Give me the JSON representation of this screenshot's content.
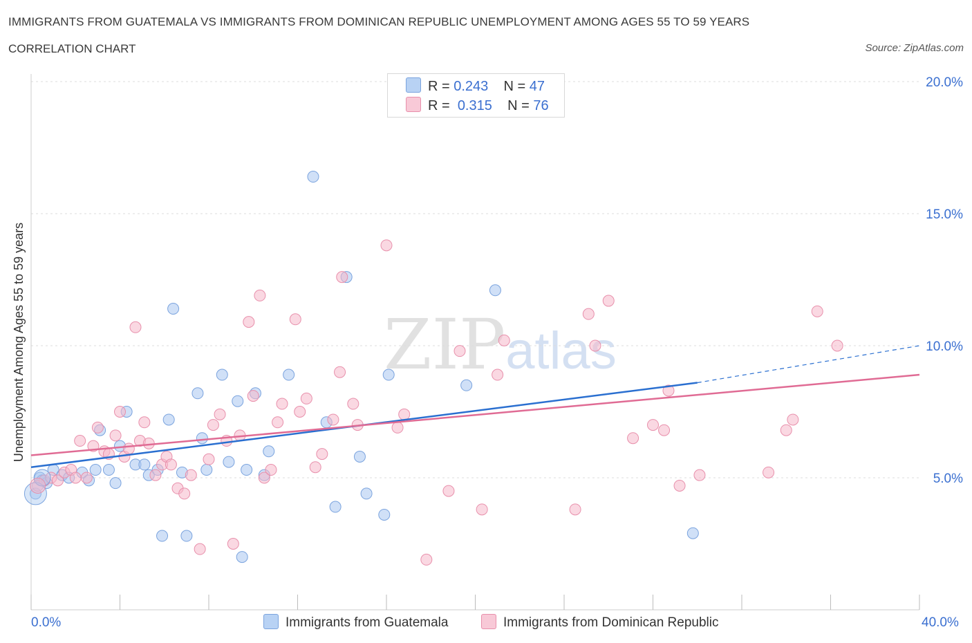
{
  "header": {
    "title": "IMMIGRANTS FROM GUATEMALA VS IMMIGRANTS FROM DOMINICAN REPUBLIC UNEMPLOYMENT AMONG AGES 55 TO 59 YEARS",
    "subtitle": "CORRELATION CHART",
    "source": "Source: ZipAtlas.com"
  },
  "watermark": {
    "zip": "ZIP",
    "atlas": "atlas"
  },
  "legend": {
    "r_label": "R =",
    "n_label": "N =",
    "rows": [
      {
        "r": "0.243",
        "n": "47"
      },
      {
        "r": "0.315",
        "n": "76"
      }
    ]
  },
  "colors": {
    "series1_fill": "#a9c7f0",
    "series1_stroke": "#7aa3de",
    "series1_line": "#2a6fd0",
    "series2_fill": "#f5b8cb",
    "series2_stroke": "#e88fab",
    "series2_line": "#e06b94",
    "axis_label": "#3a6fd0",
    "grid": "#dddddd"
  },
  "chart_data": {
    "type": "scatter",
    "xlabel": "",
    "ylabel": "Unemployment Among Ages 55 to 59 years",
    "xlim": [
      0,
      40
    ],
    "ylim": [
      0,
      20
    ],
    "x_tick_labels": [
      "0.0%",
      "40.0%"
    ],
    "y_ticks": [
      5,
      10,
      15,
      20
    ],
    "y_tick_labels": [
      "5.0%",
      "10.0%",
      "15.0%",
      "20.0%"
    ],
    "grid": true,
    "legend_position": "top-center",
    "series": [
      {
        "name": "Immigrants from Guatemala",
        "r": 0.243,
        "n": 47,
        "trend": {
          "x": [
            0,
            30
          ],
          "y": [
            5.4,
            8.6
          ],
          "dashed_to": [
            40,
            10.0
          ]
        },
        "points": [
          [
            0.2,
            4.4
          ],
          [
            0.4,
            5.0
          ],
          [
            0.5,
            4.9
          ],
          [
            0.7,
            4.8
          ],
          [
            1.0,
            5.3
          ],
          [
            1.4,
            5.1
          ],
          [
            1.7,
            5.0
          ],
          [
            2.3,
            5.2
          ],
          [
            2.6,
            4.9
          ],
          [
            2.9,
            5.3
          ],
          [
            3.1,
            6.8
          ],
          [
            3.5,
            5.3
          ],
          [
            3.8,
            4.8
          ],
          [
            4.0,
            6.2
          ],
          [
            4.3,
            7.5
          ],
          [
            4.7,
            5.5
          ],
          [
            5.1,
            5.5
          ],
          [
            5.3,
            5.1
          ],
          [
            5.7,
            5.3
          ],
          [
            5.9,
            2.8
          ],
          [
            6.2,
            7.2
          ],
          [
            6.4,
            11.4
          ],
          [
            6.8,
            5.2
          ],
          [
            7.0,
            2.8
          ],
          [
            7.5,
            8.2
          ],
          [
            7.7,
            6.5
          ],
          [
            7.9,
            5.3
          ],
          [
            8.6,
            8.9
          ],
          [
            8.9,
            5.6
          ],
          [
            9.3,
            7.9
          ],
          [
            9.5,
            2.0
          ],
          [
            9.7,
            5.3
          ],
          [
            10.1,
            8.2
          ],
          [
            10.5,
            5.1
          ],
          [
            10.7,
            6.0
          ],
          [
            11.6,
            8.9
          ],
          [
            12.7,
            16.4
          ],
          [
            13.3,
            7.1
          ],
          [
            13.7,
            3.9
          ],
          [
            14.2,
            12.6
          ],
          [
            14.8,
            5.8
          ],
          [
            15.1,
            4.4
          ],
          [
            15.9,
            3.6
          ],
          [
            16.1,
            8.9
          ],
          [
            19.6,
            8.5
          ],
          [
            20.9,
            12.1
          ],
          [
            29.8,
            2.9
          ]
        ]
      },
      {
        "name": "Immigrants from Dominican Republic",
        "r": 0.315,
        "n": 76,
        "trend": {
          "x": [
            0,
            40
          ],
          "y": [
            5.85,
            8.9
          ]
        },
        "points": [
          [
            0.3,
            4.7
          ],
          [
            0.6,
            4.9
          ],
          [
            0.9,
            5.0
          ],
          [
            1.2,
            4.9
          ],
          [
            1.5,
            5.2
          ],
          [
            1.8,
            5.3
          ],
          [
            2.0,
            5.0
          ],
          [
            2.2,
            6.4
          ],
          [
            2.5,
            5.0
          ],
          [
            2.8,
            6.2
          ],
          [
            3.0,
            6.9
          ],
          [
            3.3,
            6.0
          ],
          [
            3.5,
            5.9
          ],
          [
            3.8,
            6.6
          ],
          [
            4.0,
            7.5
          ],
          [
            4.2,
            5.8
          ],
          [
            4.4,
            6.1
          ],
          [
            4.7,
            10.7
          ],
          [
            4.9,
            6.4
          ],
          [
            5.1,
            7.1
          ],
          [
            5.3,
            6.3
          ],
          [
            5.6,
            5.1
          ],
          [
            5.9,
            5.5
          ],
          [
            6.1,
            5.8
          ],
          [
            6.3,
            5.5
          ],
          [
            6.6,
            4.6
          ],
          [
            6.9,
            4.4
          ],
          [
            7.2,
            5.1
          ],
          [
            7.6,
            2.3
          ],
          [
            8.0,
            5.7
          ],
          [
            8.2,
            7.0
          ],
          [
            8.5,
            7.4
          ],
          [
            8.8,
            6.4
          ],
          [
            9.1,
            2.5
          ],
          [
            9.4,
            6.6
          ],
          [
            9.8,
            10.9
          ],
          [
            10.0,
            8.1
          ],
          [
            10.3,
            11.9
          ],
          [
            10.5,
            5.0
          ],
          [
            10.8,
            5.3
          ],
          [
            11.1,
            7.1
          ],
          [
            11.3,
            7.8
          ],
          [
            11.9,
            11.0
          ],
          [
            12.1,
            7.5
          ],
          [
            12.4,
            8.0
          ],
          [
            12.8,
            5.4
          ],
          [
            13.1,
            5.9
          ],
          [
            13.6,
            7.2
          ],
          [
            14.0,
            12.6
          ],
          [
            13.9,
            9.0
          ],
          [
            14.5,
            7.8
          ],
          [
            14.7,
            7.0
          ],
          [
            16.0,
            13.8
          ],
          [
            16.5,
            6.9
          ],
          [
            16.8,
            7.4
          ],
          [
            17.8,
            1.9
          ],
          [
            18.8,
            4.5
          ],
          [
            19.3,
            9.8
          ],
          [
            20.3,
            3.8
          ],
          [
            21.0,
            8.9
          ],
          [
            21.3,
            10.2
          ],
          [
            24.5,
            3.8
          ],
          [
            25.1,
            11.2
          ],
          [
            25.4,
            10.0
          ],
          [
            26.0,
            11.7
          ],
          [
            27.1,
            6.5
          ],
          [
            28.0,
            7.0
          ],
          [
            28.5,
            6.8
          ],
          [
            28.7,
            8.3
          ],
          [
            29.2,
            4.7
          ],
          [
            30.1,
            5.1
          ],
          [
            33.2,
            5.2
          ],
          [
            34.0,
            6.8
          ],
          [
            34.3,
            7.2
          ],
          [
            35.4,
            11.3
          ],
          [
            36.3,
            10.0
          ]
        ]
      }
    ]
  }
}
